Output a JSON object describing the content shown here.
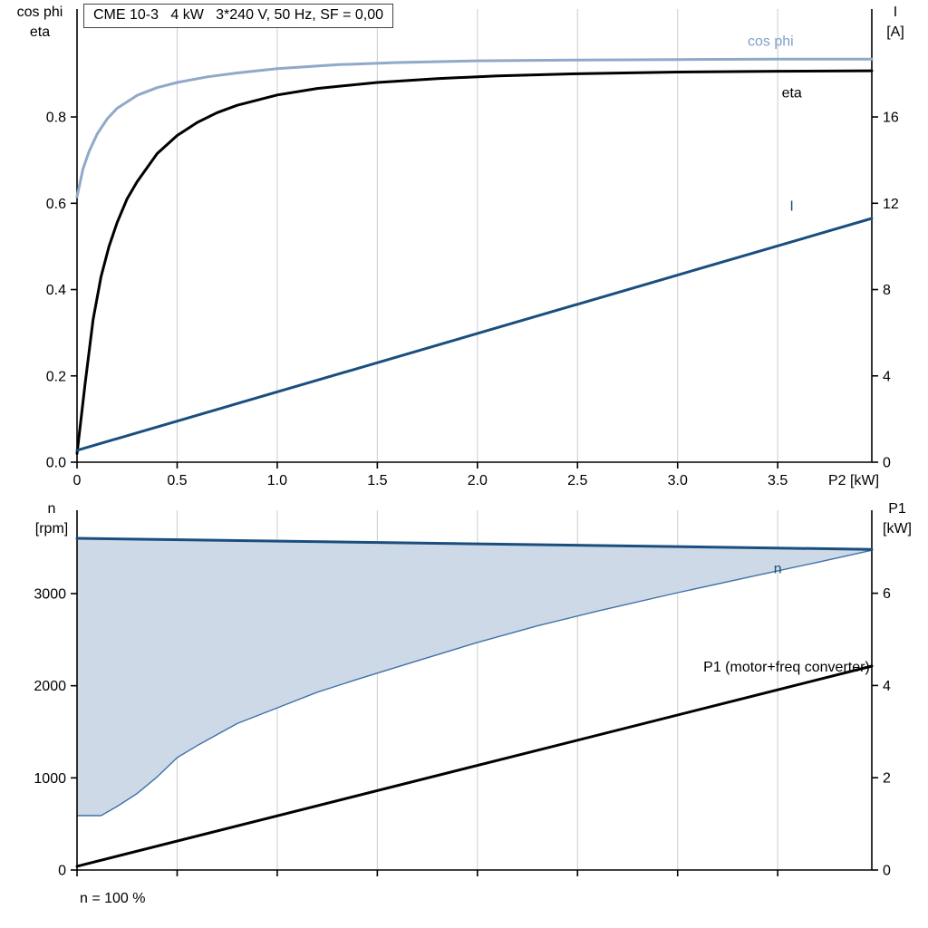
{
  "header": {
    "title": "CME 10-3   4 kW   3*240 V, 50 Hz, SF = 0,00"
  },
  "footer": {
    "note": "n = 100 %"
  },
  "colors": {
    "cos_phi": "#8fa9c9",
    "cos_phi_label": "#7da2c6",
    "dark_blue": "#1a4e7e",
    "black": "#000000",
    "area_fill": "#cdd9e7",
    "area_edge": "#3f72a6",
    "grid": "#cccccc",
    "axis": "#000000"
  },
  "chart_data": [
    {
      "type": "line",
      "title": "CME 10-3   4 kW   3*240 V, 50 Hz, SF = 0,00",
      "x_label": "P2 [kW]",
      "x_range": [
        0,
        3.97
      ],
      "show_x_labels": true,
      "x_ticks": [
        {
          "v": 0,
          "label": "0"
        },
        {
          "v": 0.5,
          "label": "0.5"
        },
        {
          "v": 1.0,
          "label": "1.0"
        },
        {
          "v": 1.5,
          "label": "1.5"
        },
        {
          "v": 2.0,
          "label": "2.0"
        },
        {
          "v": 2.5,
          "label": "2.5"
        },
        {
          "v": 3.0,
          "label": "3.0"
        },
        {
          "v": 3.5,
          "label": "3.5"
        }
      ],
      "left_axis": {
        "title_lines": [
          "cos phi",
          "eta"
        ],
        "range": [
          0,
          1.05
        ],
        "ticks": [
          {
            "v": 0.0,
            "label": "0.0"
          },
          {
            "v": 0.2,
            "label": "0.2"
          },
          {
            "v": 0.4,
            "label": "0.4"
          },
          {
            "v": 0.6,
            "label": "0.6"
          },
          {
            "v": 0.8,
            "label": "0.8"
          }
        ]
      },
      "right_axis": {
        "title_lines": [
          "I",
          "[A]"
        ],
        "range": [
          0,
          21
        ],
        "ticks": [
          {
            "v": 0,
            "label": "0"
          },
          {
            "v": 4,
            "label": "4"
          },
          {
            "v": 8,
            "label": "8"
          },
          {
            "v": 12,
            "label": "12"
          },
          {
            "v": 16,
            "label": "16"
          }
        ]
      },
      "series": [
        {
          "name": "cos phi",
          "axis": "left",
          "color": "#8fa9c9",
          "width": 3,
          "points": [
            [
              0,
              0.615
            ],
            [
              0.03,
              0.68
            ],
            [
              0.06,
              0.72
            ],
            [
              0.1,
              0.76
            ],
            [
              0.15,
              0.795
            ],
            [
              0.2,
              0.82
            ],
            [
              0.3,
              0.85
            ],
            [
              0.4,
              0.868
            ],
            [
              0.5,
              0.88
            ],
            [
              0.65,
              0.893
            ],
            [
              0.8,
              0.902
            ],
            [
              1.0,
              0.912
            ],
            [
              1.3,
              0.921
            ],
            [
              1.6,
              0.926
            ],
            [
              2.0,
              0.93
            ],
            [
              2.5,
              0.932
            ],
            [
              3.0,
              0.933
            ],
            [
              3.5,
              0.934
            ],
            [
              3.97,
              0.934
            ]
          ]
        },
        {
          "name": "eta",
          "axis": "left",
          "color": "#000000",
          "width": 3,
          "points": [
            [
              0,
              0.02
            ],
            [
              0.04,
              0.18
            ],
            [
              0.08,
              0.33
            ],
            [
              0.12,
              0.43
            ],
            [
              0.16,
              0.5
            ],
            [
              0.2,
              0.555
            ],
            [
              0.25,
              0.61
            ],
            [
              0.3,
              0.65
            ],
            [
              0.4,
              0.715
            ],
            [
              0.5,
              0.757
            ],
            [
              0.6,
              0.787
            ],
            [
              0.7,
              0.81
            ],
            [
              0.8,
              0.827
            ],
            [
              1.0,
              0.851
            ],
            [
              1.2,
              0.866
            ],
            [
              1.5,
              0.88
            ],
            [
              1.8,
              0.889
            ],
            [
              2.1,
              0.895
            ],
            [
              2.5,
              0.9
            ],
            [
              3.0,
              0.904
            ],
            [
              3.5,
              0.906
            ],
            [
              3.97,
              0.907
            ]
          ]
        },
        {
          "name": "I",
          "axis": "right",
          "color": "#1a4e7e",
          "width": 3,
          "points": [
            [
              0,
              0.55
            ],
            [
              3.97,
              11.3
            ]
          ]
        }
      ],
      "annotations": [
        {
          "text": "cos phi",
          "x": 3.35,
          "axis": "left",
          "y": 0.965,
          "color": "#7da2c6",
          "anchor": "start"
        },
        {
          "text": "eta",
          "x": 3.52,
          "axis": "left",
          "y": 0.845,
          "color": "#000000",
          "anchor": "start"
        },
        {
          "text": "I",
          "x": 3.56,
          "axis": "right",
          "y": 11.65,
          "color": "#1a4e7e",
          "anchor": "start"
        }
      ]
    },
    {
      "type": "line",
      "title": "",
      "x_label": "",
      "x_range": [
        0,
        3.97
      ],
      "show_x_labels": false,
      "x_ticks": [
        {
          "v": 0,
          "label": ""
        },
        {
          "v": 0.5,
          "label": ""
        },
        {
          "v": 1.0,
          "label": ""
        },
        {
          "v": 1.5,
          "label": ""
        },
        {
          "v": 2.0,
          "label": ""
        },
        {
          "v": 2.5,
          "label": ""
        },
        {
          "v": 3.0,
          "label": ""
        },
        {
          "v": 3.5,
          "label": ""
        }
      ],
      "left_axis": {
        "title_lines": [
          "n",
          "[rpm]"
        ],
        "range": [
          0,
          3905
        ],
        "ticks": [
          {
            "v": 0,
            "label": "0"
          },
          {
            "v": 1000,
            "label": "1000"
          },
          {
            "v": 2000,
            "label": "2000"
          },
          {
            "v": 3000,
            "label": "3000"
          }
        ]
      },
      "right_axis": {
        "title_lines": [
          "P1",
          "[kW]"
        ],
        "range": [
          0,
          7.8
        ],
        "ticks": [
          {
            "v": 0,
            "label": "0"
          },
          {
            "v": 2,
            "label": "2"
          },
          {
            "v": 4,
            "label": "4"
          },
          {
            "v": 6,
            "label": "6"
          }
        ]
      },
      "series": [
        {
          "name": "speed-control-range",
          "type": "area",
          "axis": "left",
          "fill": "#cdd9e7",
          "stroke": "#3f72a6",
          "strokeWidth": 1.4,
          "top": [
            [
              0,
              3600
            ],
            [
              3.97,
              3480
            ]
          ],
          "bottom": [
            [
              0,
              590
            ],
            [
              0.12,
              590
            ],
            [
              0.2,
              690
            ],
            [
              0.3,
              830
            ],
            [
              0.4,
              1010
            ],
            [
              0.5,
              1220
            ],
            [
              0.6,
              1350
            ],
            [
              0.8,
              1590
            ],
            [
              1.0,
              1760
            ],
            [
              1.2,
              1930
            ],
            [
              1.4,
              2070
            ],
            [
              1.7,
              2270
            ],
            [
              2.0,
              2470
            ],
            [
              2.3,
              2650
            ],
            [
              2.6,
              2810
            ],
            [
              3.0,
              3010
            ],
            [
              3.4,
              3200
            ],
            [
              3.7,
              3340
            ],
            [
              3.97,
              3470
            ]
          ]
        },
        {
          "name": "n",
          "axis": "left",
          "color": "#1a4e7e",
          "width": 3,
          "points": [
            [
              0,
              3600
            ],
            [
              3.97,
              3480
            ]
          ]
        },
        {
          "name": "P1 (motor+freq converter)",
          "axis": "right",
          "color": "#000000",
          "width": 3,
          "points": [
            [
              0,
              0.08
            ],
            [
              3.97,
              4.42
            ]
          ]
        }
      ],
      "annotations": [
        {
          "text": "n",
          "x": 3.48,
          "axis": "left",
          "y": 3220,
          "color": "#1a4e7e",
          "anchor": "start"
        },
        {
          "text": "P1 (motor+freq converter)",
          "x": 3.96,
          "axis": "right",
          "y": 4.3,
          "color": "#000000",
          "anchor": "end"
        }
      ]
    }
  ]
}
